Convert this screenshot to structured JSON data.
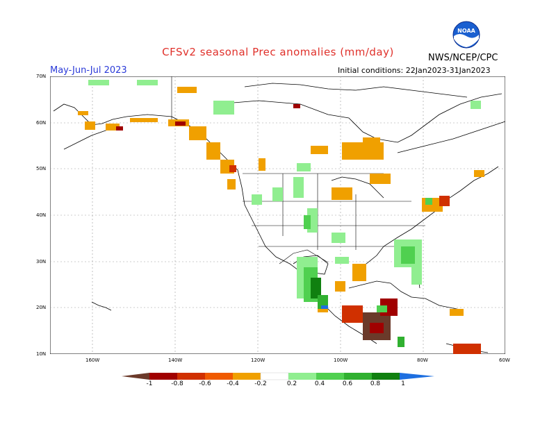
{
  "title": "CFSv2 seasonal Prec anomalies (mm/day)",
  "org": "NWS/NCEP/CPC",
  "season": "May-Jun-Jul 2023",
  "initial_conditions": "Initial conditions: 22Jan2023-31Jan2023",
  "logo_text": "NOAA",
  "lat_labels": [
    "70N",
    "60N",
    "50N",
    "40N",
    "30N",
    "20N",
    "10N"
  ],
  "lon_labels": [
    "160W",
    "140W",
    "120W",
    "100W",
    "80W",
    "60W"
  ],
  "colorbar": {
    "labels": [
      "-1",
      "-0.8",
      "-0.6",
      "-0.4",
      "-0.2",
      "0.2",
      "0.4",
      "0.6",
      "0.8",
      "1"
    ],
    "colors": [
      "#6b3a2a",
      "#a00000",
      "#d03000",
      "#f05a00",
      "#f0a000",
      "#ffffff",
      "#90ee90",
      "#50d050",
      "#30b030",
      "#108010",
      "#1e6fe0"
    ]
  }
}
